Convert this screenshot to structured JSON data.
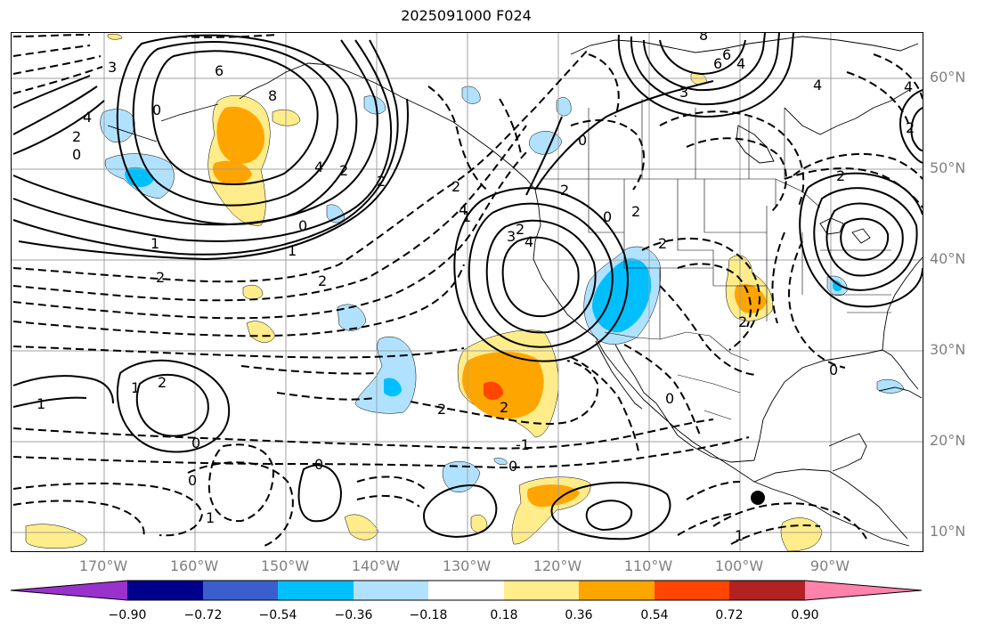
{
  "title": "2025091000 F024",
  "latitude_labels": [
    "60°N",
    "50°N",
    "40°N",
    "30°N",
    "20°N",
    "10°N"
  ],
  "longitude_labels": [
    "170°W",
    "160°W",
    "150°W",
    "140°W",
    "130°W",
    "120°W",
    "110°W",
    "100°W",
    "90°W"
  ],
  "colorbar": {
    "colors": [
      "#9932cc",
      "#00008b",
      "#3a5fcd",
      "#00bfff",
      "#b0e2ff",
      "#ffffff",
      "#ffec8b",
      "#ffa500",
      "#ff4500",
      "#b22222",
      "#ff82ab"
    ],
    "tick_labels": [
      "−0.90",
      "−0.72",
      "−0.54",
      "−0.36",
      "−0.18",
      "0.18",
      "0.36",
      "0.54",
      "0.72",
      "0.90"
    ]
  },
  "contour_labels": [
    "3",
    "4",
    "2",
    "0",
    "6",
    "8",
    "4",
    "2",
    "0",
    "1",
    "2",
    "1",
    "2",
    "2",
    "0",
    "0",
    "1",
    "2",
    "3",
    "4",
    "2",
    "0",
    "2",
    "2",
    "-1",
    "0",
    "0",
    "1",
    "1",
    "0",
    "0",
    "1",
    "4",
    "3",
    "6",
    "4",
    "2",
    "2",
    "2",
    "0",
    "0",
    "4",
    "2",
    "2",
    "2",
    "1",
    "2",
    "8",
    "4",
    "6"
  ],
  "marker": {
    "name": "storm-center",
    "color": "#000000"
  }
}
